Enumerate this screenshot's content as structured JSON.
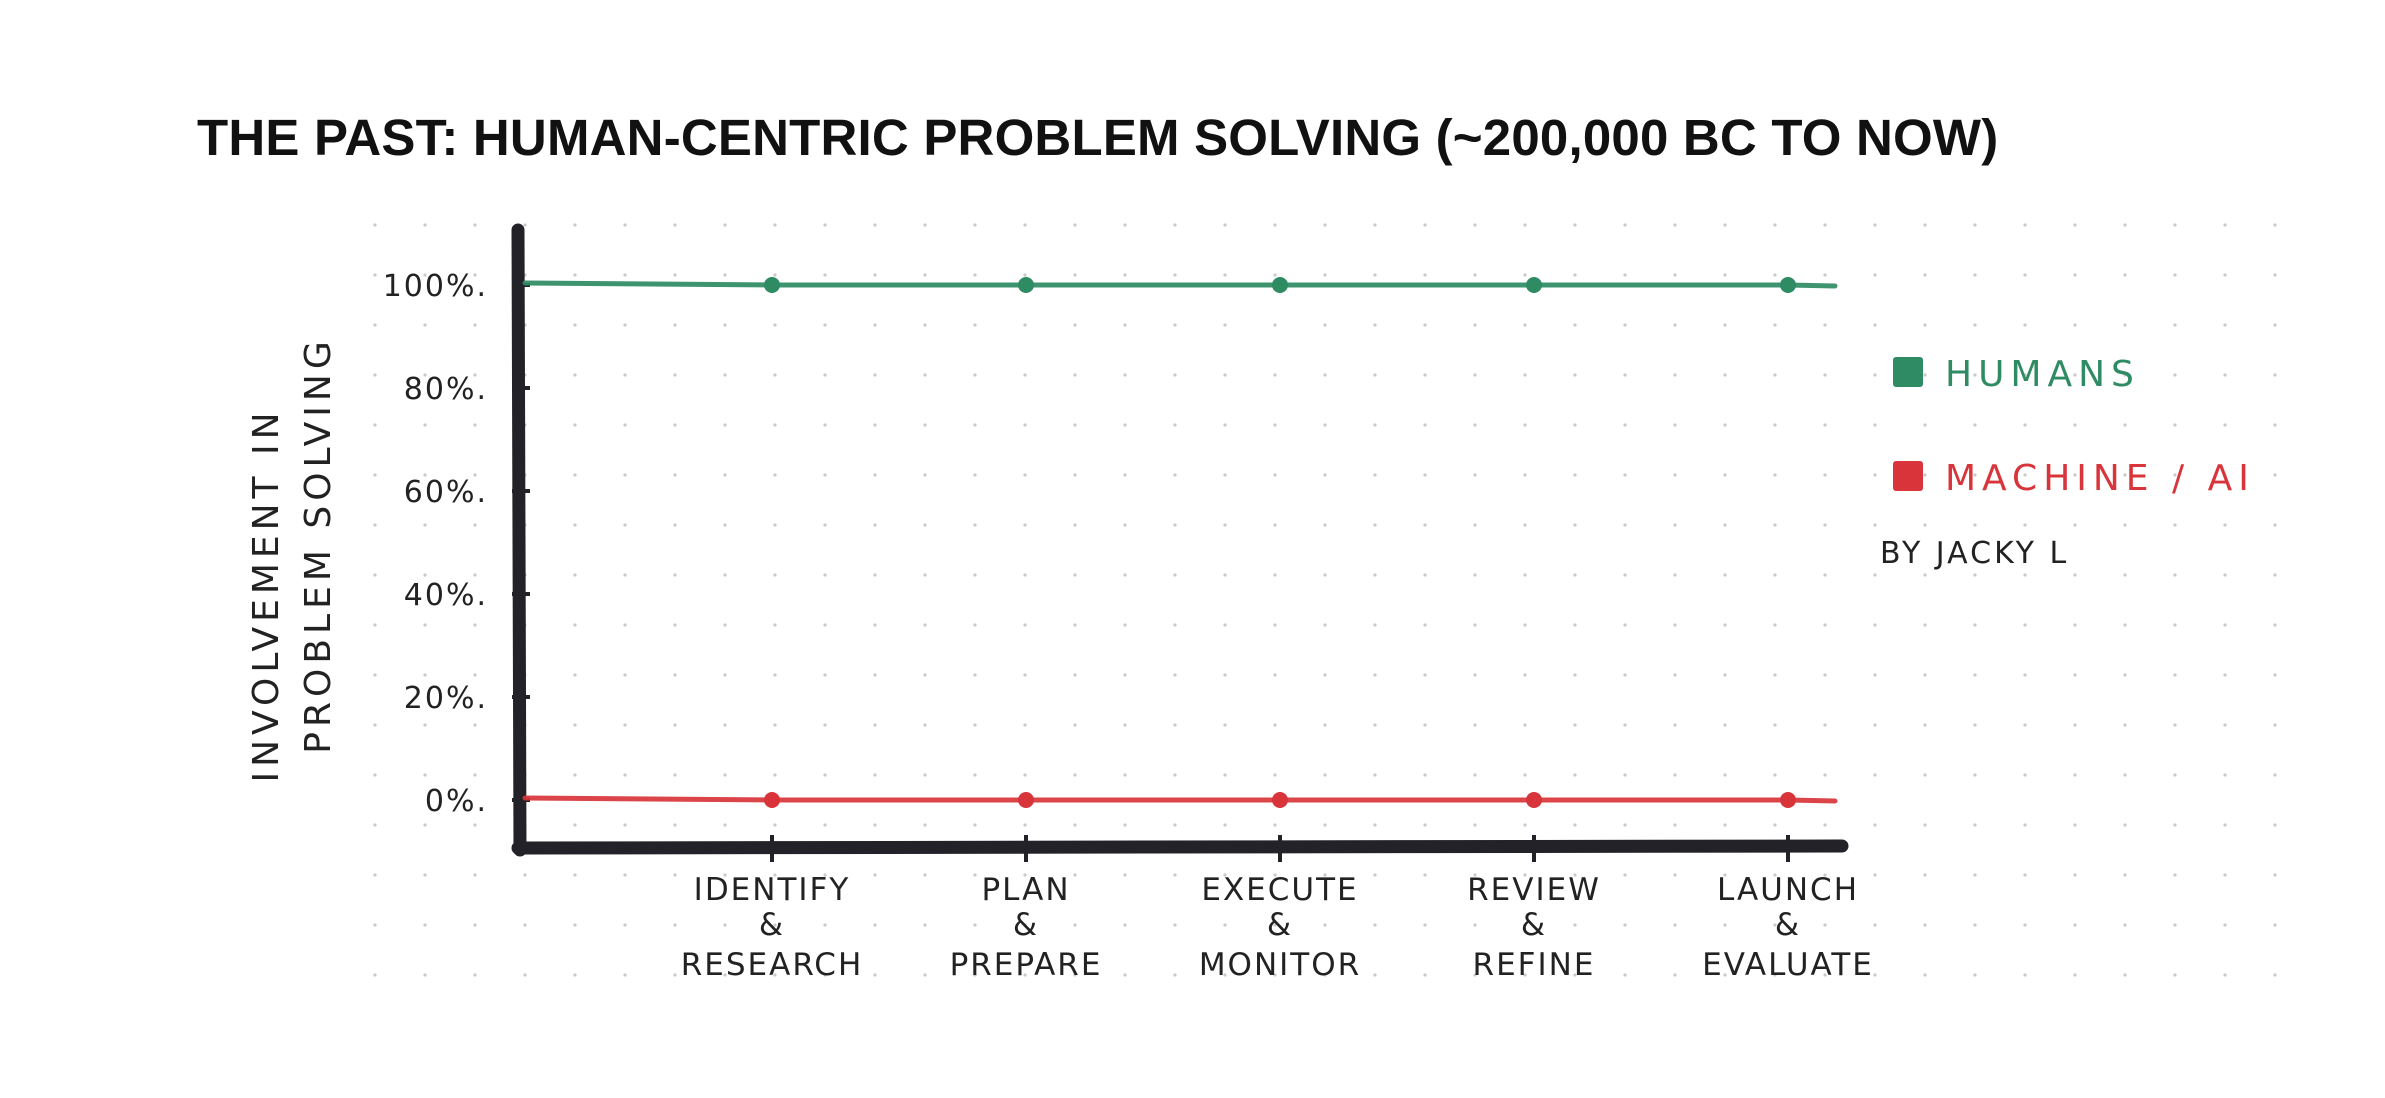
{
  "chart_data": {
    "type": "line",
    "title": "THE PAST: HUMAN-CENTRIC PROBLEM SOLVING (~200,000 BC TO NOW)",
    "ylabel_line1": "INVOLVEMENT IN",
    "ylabel_line2": "PROBLEM SOLVING",
    "xlabel": "",
    "ylim": [
      0,
      100
    ],
    "y_ticks": [
      {
        "value": 100,
        "label": "100%."
      },
      {
        "value": 80,
        "label": "80%."
      },
      {
        "value": 60,
        "label": "60%."
      },
      {
        "value": 40,
        "label": "40%."
      },
      {
        "value": 20,
        "label": "20%."
      },
      {
        "value": 0,
        "label": "0%."
      }
    ],
    "categories": [
      {
        "line1": "IDENTIFY",
        "line2": "&",
        "line3": "RESEARCH"
      },
      {
        "line1": "PLAN",
        "line2": "&",
        "line3": "PREPARE"
      },
      {
        "line1": "EXECUTE",
        "line2": "&",
        "line3": "MONITOR"
      },
      {
        "line1": "REVIEW",
        "line2": "&",
        "line3": "REFINE"
      },
      {
        "line1": "LAUNCH",
        "line2": "&",
        "line3": "EVALUATE"
      }
    ],
    "series": [
      {
        "name": "HUMANS",
        "color": "#2e8b63",
        "values": [
          100,
          100,
          100,
          100,
          100
        ]
      },
      {
        "name": "MACHINE / AI",
        "color": "#d8343a",
        "values": [
          0,
          0,
          0,
          0,
          0
        ]
      }
    ],
    "grid": "dot-grid paper",
    "legend_position": "right",
    "credit": "BY JACKY L"
  }
}
